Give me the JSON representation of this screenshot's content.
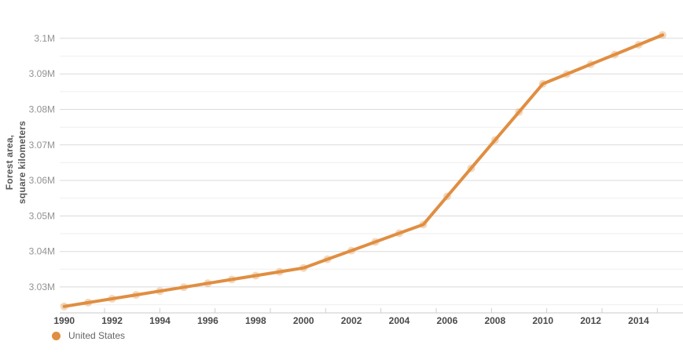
{
  "chart_data": {
    "type": "line",
    "title": "",
    "xlabel": "",
    "ylabel": "Forest area, square kilometers",
    "ylabel_lines": [
      "Forest area,",
      "square kilometers"
    ],
    "legend_position": "bottom-left",
    "grid": "horizontal major and minor gridlines, no vertical gridlines",
    "x": [
      1990,
      1991,
      1992,
      1993,
      1994,
      1995,
      1996,
      1997,
      1998,
      1999,
      2000,
      2001,
      2002,
      2003,
      2004,
      2005,
      2006,
      2007,
      2008,
      2009,
      2010,
      2011,
      2012,
      2013,
      2014,
      2015
    ],
    "series": [
      {
        "name": "United States",
        "color": "#e08e41",
        "marker_color": "rgba(224,142,65,0.35)",
        "values": [
          3024500,
          3025586,
          3026672,
          3027758,
          3028844,
          3029930,
          3031016,
          3032102,
          3033188,
          3034274,
          3035360,
          3037802,
          3040244,
          3042686,
          3045128,
          3047570,
          3055496,
          3063422,
          3071348,
          3079274,
          3087200,
          3089950,
          3092700,
          3095450,
          3098200,
          3100950
        ]
      }
    ],
    "x_axis": {
      "tick_label_years": [
        1990,
        1992,
        1994,
        1996,
        1998,
        2000,
        2002,
        2004,
        2006,
        2008,
        2010,
        2012,
        2014
      ],
      "tick_labels": [
        "1990",
        "1992",
        "1994",
        "1996",
        "1998",
        "2000",
        "2002",
        "2004",
        "2006",
        "2008",
        "2010",
        "2012",
        "2014"
      ],
      "range": [
        1990,
        2015
      ]
    },
    "y_axis": {
      "unit_suffix": "M",
      "ticks": [
        {
          "value": 3030000,
          "label": "3.03M"
        },
        {
          "value": 3040000,
          "label": "3.04M"
        },
        {
          "value": 3050000,
          "label": "3.05M"
        },
        {
          "value": 3060000,
          "label": "3.06M"
        },
        {
          "value": 3070000,
          "label": "3.07M"
        },
        {
          "value": 3080000,
          "label": "3.08M"
        },
        {
          "value": 3090000,
          "label": "3.09M"
        },
        {
          "value": 3100000,
          "label": "3.1M"
        }
      ],
      "minor_tick_values": [
        3025000,
        3035000,
        3045000,
        3055000,
        3065000,
        3075000,
        3085000,
        3095000
      ],
      "range": [
        3022700,
        3108600
      ]
    },
    "colors": {
      "grid_major": "#dadada",
      "grid_minor": "#efefef",
      "axis_line": "#cbcbcb",
      "tick": "#cfcfcf",
      "y_label": "#929292",
      "x_label": "#4a4a4a",
      "y_title": "#595959",
      "legend_text": "#666666"
    }
  }
}
